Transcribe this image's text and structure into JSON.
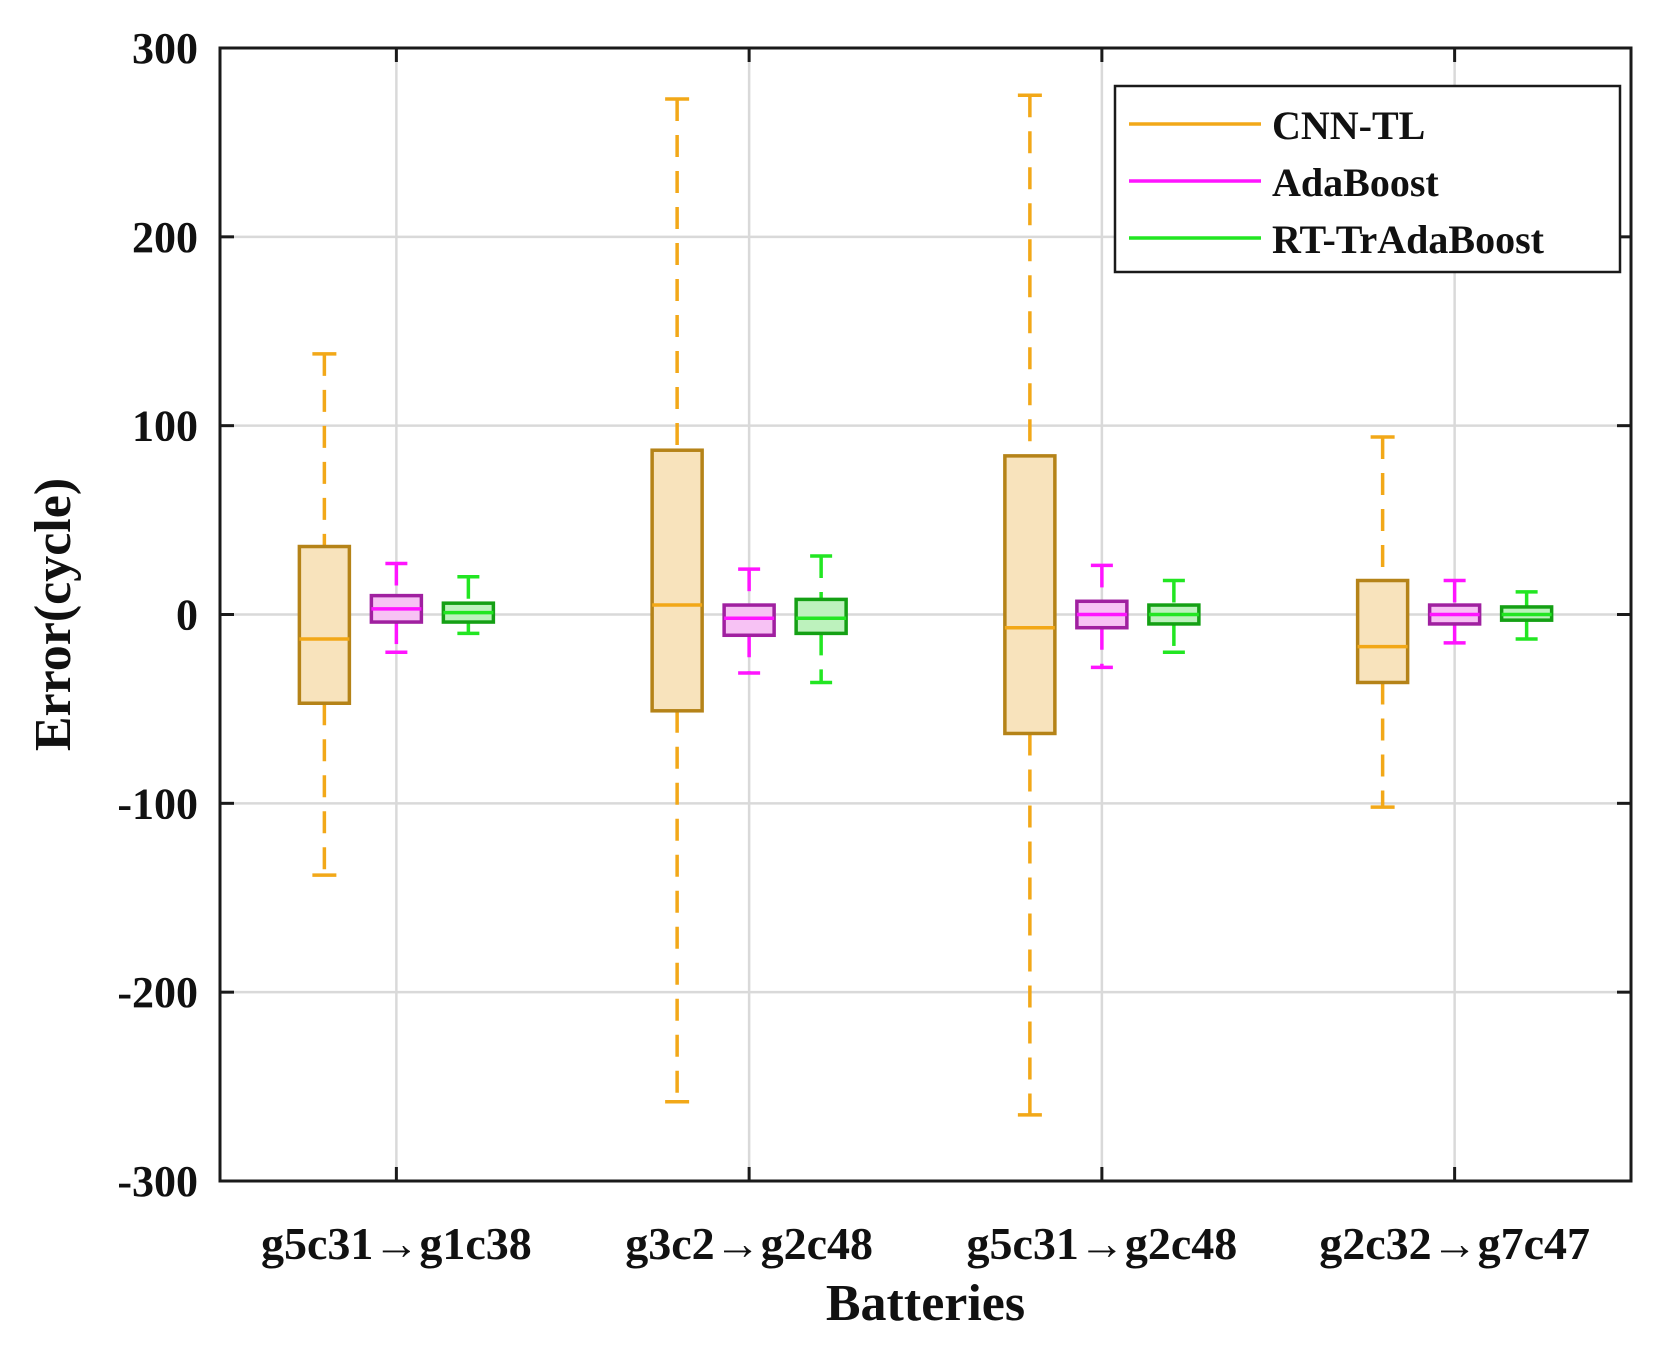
{
  "chart_data": {
    "type": "box",
    "title": "",
    "xlabel": "Batteries",
    "ylabel": "Error(cycle)",
    "ylim": [
      -300,
      300
    ],
    "yticks": [
      -300,
      -200,
      -100,
      0,
      100,
      200,
      300
    ],
    "ytick_labels": [
      "-300",
      "-200",
      "-100",
      "0",
      "100",
      "200",
      "300"
    ],
    "grid": true,
    "legend_position": "top-right",
    "categories": [
      "g5c31→g1c38",
      "g3c2→g2c48",
      "g5c31→g2c48",
      "g2c32→g7c47"
    ],
    "series": [
      {
        "name": "CNN-TL",
        "color": "#F2A818",
        "edge_color": "#B58318",
        "fill_color": "#F8E3BC",
        "boxes": [
          {
            "whisker_low": -138,
            "q1": -47,
            "median": -13,
            "q3": 36,
            "whisker_high": 138
          },
          {
            "whisker_low": -258,
            "q1": -51,
            "median": 5,
            "q3": 87,
            "whisker_high": 273
          },
          {
            "whisker_low": -265,
            "q1": -63,
            "median": -7,
            "q3": 84,
            "whisker_high": 275
          },
          {
            "whisker_low": -102,
            "q1": -36,
            "median": -17,
            "q3": 18,
            "whisker_high": 94
          }
        ]
      },
      {
        "name": "AdaBoost",
        "color": "#FF14FF",
        "edge_color": "#A020A0",
        "fill_color": "#F7C2F4",
        "boxes": [
          {
            "whisker_low": -20,
            "q1": -4,
            "median": 3,
            "q3": 10,
            "whisker_high": 27
          },
          {
            "whisker_low": -31,
            "q1": -11,
            "median": -2,
            "q3": 5,
            "whisker_high": 24
          },
          {
            "whisker_low": -28,
            "q1": -7,
            "median": 0,
            "q3": 7,
            "whisker_high": 26
          },
          {
            "whisker_low": -15,
            "q1": -5,
            "median": 0,
            "q3": 5,
            "whisker_high": 18
          }
        ]
      },
      {
        "name": "RT-TrAdaBoost",
        "color": "#22E622",
        "edge_color": "#14A014",
        "fill_color": "#BDF2BD",
        "boxes": [
          {
            "whisker_low": -10,
            "q1": -4,
            "median": 1,
            "q3": 6,
            "whisker_high": 20
          },
          {
            "whisker_low": -36,
            "q1": -10,
            "median": -2,
            "q3": 8,
            "whisker_high": 31
          },
          {
            "whisker_low": -20,
            "q1": -5,
            "median": 0,
            "q3": 5,
            "whisker_high": 18
          },
          {
            "whisker_low": -13,
            "q1": -3,
            "median": 0,
            "q3": 4,
            "whisker_high": 12
          }
        ]
      }
    ]
  }
}
